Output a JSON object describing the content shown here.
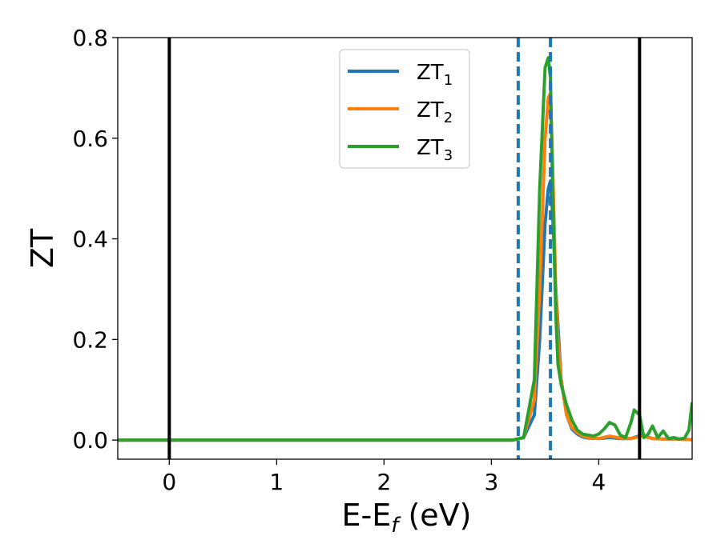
{
  "chart_data": {
    "type": "line",
    "xlabel_main": "E-E",
    "xlabel_sub": "f",
    "xlabel_unit": " (eV)",
    "ylabel": "ZT",
    "xlim": [
      -0.48,
      4.87
    ],
    "ylim": [
      -0.038,
      0.8
    ],
    "xticks": [
      {
        "value": 0,
        "label": "0"
      },
      {
        "value": 1,
        "label": "1"
      },
      {
        "value": 2,
        "label": "2"
      },
      {
        "value": 3,
        "label": "3"
      },
      {
        "value": 4,
        "label": "4"
      }
    ],
    "yticks": [
      {
        "value": 0.0,
        "label": "0.0"
      },
      {
        "value": 0.2,
        "label": "0.2"
      },
      {
        "value": 0.4,
        "label": "0.4"
      },
      {
        "value": 0.6,
        "label": "0.6"
      },
      {
        "value": 0.8,
        "label": "0.8"
      }
    ],
    "vlines": [
      {
        "x": 0.0,
        "color": "#000000",
        "style": "solid"
      },
      {
        "x": 4.38,
        "color": "#000000",
        "style": "solid"
      },
      {
        "x": 3.25,
        "color": "#1f77b4",
        "style": "dashed"
      },
      {
        "x": 3.55,
        "color": "#1f77b4",
        "style": "dashed"
      }
    ],
    "legend": {
      "placement": "upper-center"
    },
    "series": [
      {
        "name": "ZT",
        "sub": "1",
        "color": "#1f77b4",
        "x": [
          -0.48,
          3.2,
          3.3,
          3.4,
          3.45,
          3.5,
          3.53,
          3.55,
          3.57,
          3.6,
          3.65,
          3.7,
          3.75,
          3.8,
          3.85,
          3.9,
          4.0,
          4.1,
          4.2,
          4.3,
          4.4,
          4.5,
          4.6,
          4.7,
          4.87
        ],
        "y": [
          0.0,
          0.0,
          0.005,
          0.05,
          0.2,
          0.43,
          0.5,
          0.515,
          0.45,
          0.3,
          0.12,
          0.05,
          0.022,
          0.012,
          0.006,
          0.004,
          0.003,
          0.005,
          0.003,
          0.003,
          0.01,
          0.003,
          0.002,
          0.002,
          0.001
        ]
      },
      {
        "name": "ZT",
        "sub": "2",
        "color": "#ff7f0e",
        "x": [
          -0.48,
          3.2,
          3.3,
          3.4,
          3.45,
          3.5,
          3.53,
          3.55,
          3.57,
          3.6,
          3.62,
          3.65,
          3.7,
          3.75,
          3.8,
          3.85,
          3.9,
          4.0,
          4.1,
          4.2,
          4.3,
          4.4,
          4.5,
          4.6,
          4.7,
          4.87
        ],
        "y": [
          0.0,
          0.0,
          0.005,
          0.08,
          0.3,
          0.6,
          0.68,
          0.69,
          0.55,
          0.3,
          0.2,
          0.12,
          0.05,
          0.025,
          0.015,
          0.008,
          0.005,
          0.003,
          0.008,
          0.004,
          0.003,
          0.008,
          0.003,
          0.002,
          0.002,
          0.001
        ]
      },
      {
        "name": "ZT",
        "sub": "3",
        "color": "#2ca02c",
        "x": [
          -0.48,
          3.2,
          3.3,
          3.4,
          3.45,
          3.5,
          3.53,
          3.55,
          3.57,
          3.6,
          3.62,
          3.65,
          3.7,
          3.75,
          3.8,
          3.85,
          3.9,
          3.95,
          4.0,
          4.05,
          4.1,
          4.15,
          4.2,
          4.25,
          4.3,
          4.33,
          4.38,
          4.42,
          4.46,
          4.5,
          4.55,
          4.6,
          4.65,
          4.7,
          4.75,
          4.8,
          4.84,
          4.87
        ],
        "y": [
          0.0,
          0.0,
          0.005,
          0.12,
          0.5,
          0.74,
          0.76,
          0.72,
          0.5,
          0.25,
          0.15,
          0.11,
          0.07,
          0.04,
          0.02,
          0.012,
          0.01,
          0.008,
          0.012,
          0.022,
          0.035,
          0.03,
          0.01,
          0.005,
          0.035,
          0.06,
          0.05,
          0.005,
          0.012,
          0.028,
          0.005,
          0.018,
          0.003,
          0.005,
          0.002,
          0.004,
          0.02,
          0.075
        ]
      }
    ]
  }
}
